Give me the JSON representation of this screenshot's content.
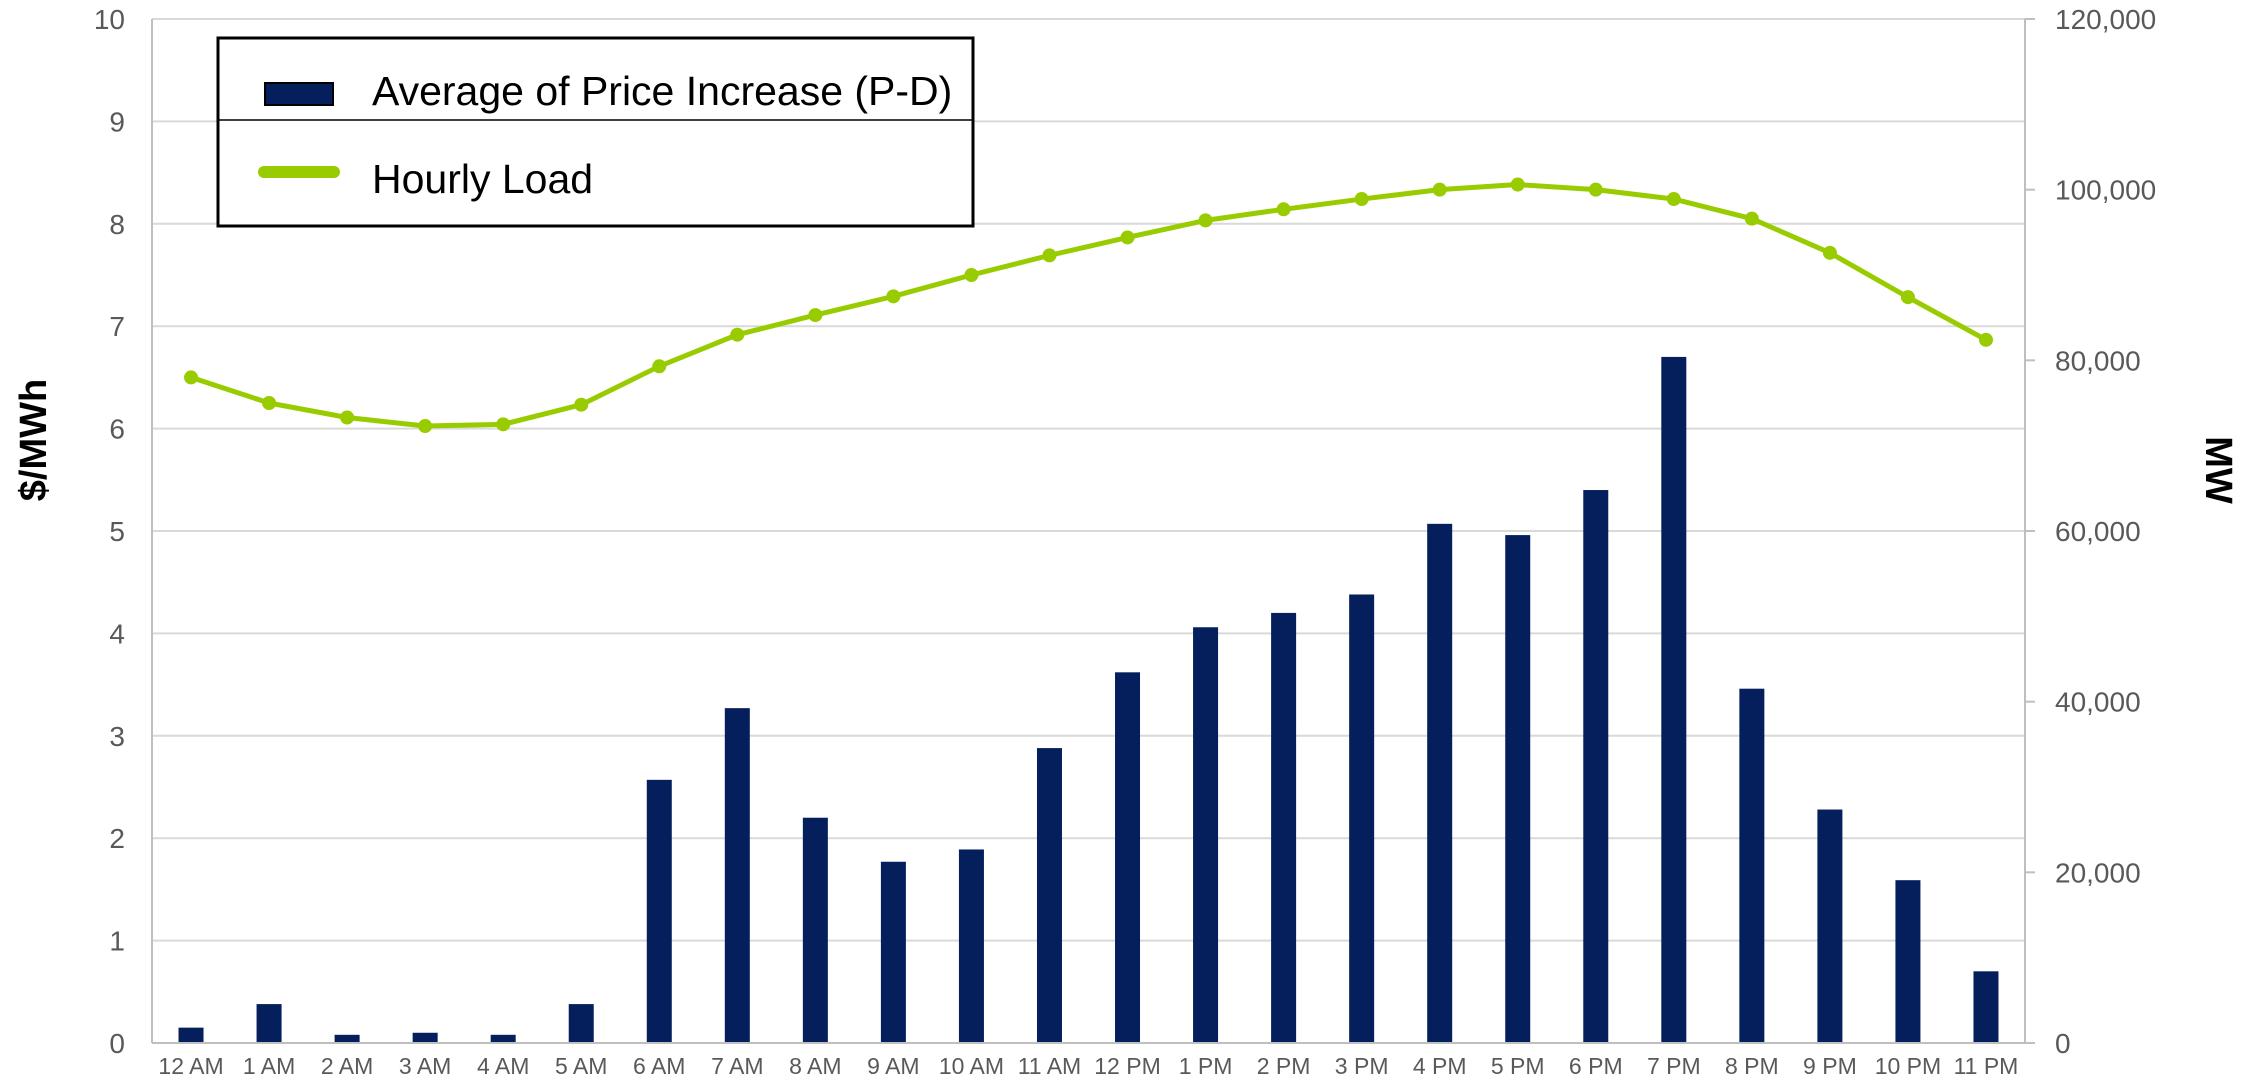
{
  "chart_data": {
    "type": "bar+line",
    "categories": [
      "12 AM",
      "1 AM",
      "2 AM",
      "3 AM",
      "4 AM",
      "5 AM",
      "6 AM",
      "7 AM",
      "8 AM",
      "9 AM",
      "10 AM",
      "11 AM",
      "12 PM",
      "1 PM",
      "2 PM",
      "3 PM",
      "4 PM",
      "5 PM",
      "6 PM",
      "7 PM",
      "8 PM",
      "9 PM",
      "10 PM",
      "11 PM"
    ],
    "series": [
      {
        "name": "Average of Price Increase (P-D)",
        "type": "bar",
        "axis": "left",
        "color": "#041f5c",
        "values": [
          0.15,
          0.38,
          0.08,
          0.1,
          0.08,
          0.38,
          2.57,
          3.27,
          2.2,
          1.77,
          1.89,
          2.88,
          3.62,
          4.06,
          4.2,
          4.38,
          5.07,
          4.96,
          5.4,
          6.7,
          3.46,
          2.28,
          1.59,
          0.7
        ]
      },
      {
        "name": "Hourly Load",
        "type": "line",
        "axis": "right",
        "color": "#99cc00",
        "values": [
          78000,
          75000,
          73300,
          72300,
          72500,
          74800,
          79300,
          83000,
          85300,
          87500,
          90000,
          92300,
          94400,
          96400,
          97700,
          98900,
          100000,
          100600,
          100000,
          98900,
          96600,
          92600,
          87400,
          82400
        ]
      }
    ],
    "ylabel": "$/MWh",
    "y2label": "MW",
    "ylim": [
      0,
      10
    ],
    "y2lim": [
      0,
      120000
    ],
    "yticks": [
      "0",
      "1",
      "2",
      "3",
      "4",
      "5",
      "6",
      "7",
      "8",
      "9",
      "10"
    ],
    "y2ticks": [
      "0",
      "20,000",
      "40,000",
      "60,000",
      "80,000",
      "100,000",
      "120,000"
    ],
    "grid": true,
    "legend_position": "top-left"
  }
}
